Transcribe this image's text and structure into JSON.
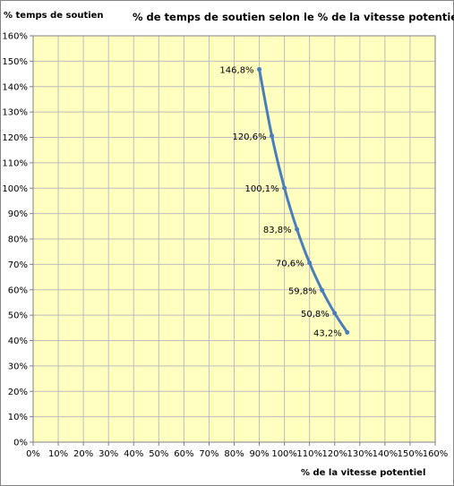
{
  "chart_data": {
    "type": "line",
    "title": "% de temps de soutien selon le % de la vitesse potentiel",
    "xlabel": "% de la vitesse potentiel",
    "ylabel": "% temps de soutien",
    "xlim": [
      0,
      160
    ],
    "ylim": [
      0,
      160
    ],
    "x_ticks": [
      "0%",
      "10%",
      "20%",
      "30%",
      "40%",
      "50%",
      "60%",
      "70%",
      "80%",
      "90%",
      "100%",
      "110%",
      "120%",
      "130%",
      "140%",
      "150%",
      "160%"
    ],
    "y_ticks": [
      "0%",
      "10%",
      "20%",
      "30%",
      "40%",
      "50%",
      "60%",
      "70%",
      "80%",
      "90%",
      "100%",
      "110%",
      "120%",
      "130%",
      "140%",
      "150%",
      "160%"
    ],
    "grid": true,
    "legend": "none",
    "series": [
      {
        "x": [
          90,
          95,
          100,
          105,
          110,
          115,
          120,
          125
        ],
        "y": [
          146.8,
          120.6,
          100.1,
          83.8,
          70.6,
          59.8,
          50.8,
          43.2
        ],
        "labels": [
          "146,8%",
          "120,6%",
          "100,1%",
          "83,8%",
          "70,6%",
          "59,8%",
          "50,8%",
          "43,2%"
        ],
        "color": "#4a7ebb"
      }
    ],
    "colors": {
      "plot_background": "#ffffc0",
      "grid": "#bdbdbd",
      "line": "#4a7ebb"
    }
  }
}
